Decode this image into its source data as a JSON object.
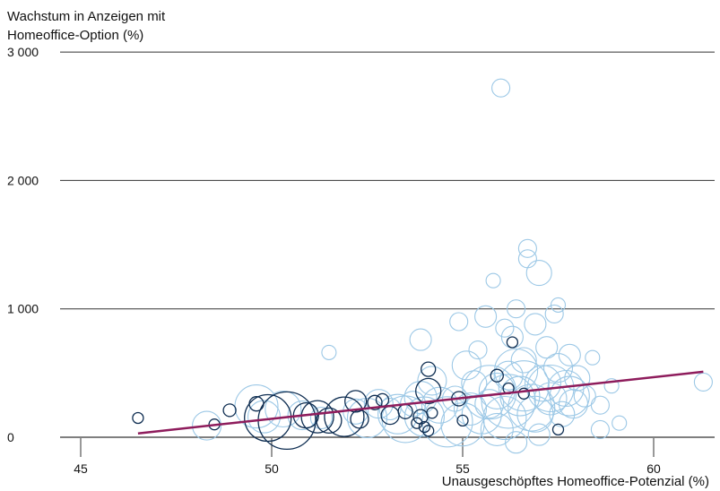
{
  "chart_data": {
    "type": "scatter",
    "title": "",
    "ylabel_lines": [
      "Wachstum in Anzeigen mit",
      "Homeoffice-Option (%)"
    ],
    "xlabel": "Unausgeschöpftes Homeoffice-Potenzial (%)",
    "xlim": [
      44.5,
      61.5
    ],
    "ylim": [
      -100,
      3000
    ],
    "xticks": [
      45,
      50,
      55,
      60
    ],
    "yticks": [
      0,
      1000,
      2000,
      3000
    ],
    "ytick_labels": [
      "0",
      "1 000",
      "2 000",
      "3 000"
    ],
    "grid": "horizontal",
    "colors": {
      "light": "#9cc8e6",
      "dark": "#0f2e52",
      "trend": "#8e1c5c",
      "axis": "#333333"
    },
    "trendline": {
      "x": [
        46.5,
        61.3
      ],
      "y": [
        30,
        510
      ]
    },
    "series": [
      {
        "key": "light",
        "points": [
          [
            48.3,
            90,
            16
          ],
          [
            49.6,
            240,
            24
          ],
          [
            49.8,
            160,
            18
          ],
          [
            50.3,
            220,
            20
          ],
          [
            50.8,
            170,
            16
          ],
          [
            51.3,
            150,
            12
          ],
          [
            51.5,
            660,
            8
          ],
          [
            52.2,
            200,
            14
          ],
          [
            52.5,
            150,
            22
          ],
          [
            52.8,
            260,
            16
          ],
          [
            53.1,
            220,
            12
          ],
          [
            53.3,
            180,
            22
          ],
          [
            53.5,
            140,
            26
          ],
          [
            53.7,
            260,
            14
          ],
          [
            53.9,
            310,
            18
          ],
          [
            54.0,
            160,
            22
          ],
          [
            54.2,
            440,
            16
          ],
          [
            54.4,
            250,
            20
          ],
          [
            54.6,
            120,
            28
          ],
          [
            54.8,
            300,
            14
          ],
          [
            54.9,
            900,
            10
          ],
          [
            55.0,
            100,
            24
          ],
          [
            55.2,
            220,
            18
          ],
          [
            55.3,
            420,
            14
          ],
          [
            55.4,
            680,
            10
          ],
          [
            55.5,
            180,
            22
          ],
          [
            55.6,
            940,
            12
          ],
          [
            55.7,
            260,
            16
          ],
          [
            55.8,
            1220,
            8
          ],
          [
            55.9,
            360,
            20
          ],
          [
            56.0,
            2720,
            10
          ],
          [
            56.1,
            150,
            24
          ],
          [
            56.2,
            480,
            16
          ],
          [
            56.3,
            780,
            12
          ],
          [
            56.4,
            1000,
            10
          ],
          [
            56.5,
            320,
            22
          ],
          [
            56.6,
            600,
            14
          ],
          [
            56.7,
            1470,
            10
          ],
          [
            56.7,
            1390,
            10
          ],
          [
            56.8,
            230,
            26
          ],
          [
            56.9,
            880,
            12
          ],
          [
            57.0,
            1280,
            14
          ],
          [
            57.1,
            420,
            20
          ],
          [
            57.2,
            700,
            12
          ],
          [
            57.3,
            300,
            18
          ],
          [
            57.4,
            960,
            10
          ],
          [
            57.5,
            540,
            16
          ],
          [
            57.6,
            180,
            14
          ],
          [
            57.7,
            380,
            20
          ],
          [
            57.8,
            640,
            12
          ],
          [
            57.9,
            260,
            16
          ],
          [
            58.0,
            460,
            14
          ],
          [
            58.2,
            320,
            12
          ],
          [
            58.4,
            620,
            8
          ],
          [
            58.6,
            250,
            10
          ],
          [
            58.9,
            400,
            8
          ],
          [
            59.1,
            110,
            8
          ],
          [
            61.3,
            430,
            10
          ],
          [
            55.7,
            350,
            30
          ],
          [
            56.6,
            400,
            28
          ],
          [
            57.3,
            380,
            26
          ],
          [
            56.2,
            280,
            30
          ],
          [
            57.8,
            320,
            22
          ],
          [
            55.1,
            560,
            16
          ],
          [
            56.9,
            180,
            20
          ],
          [
            53.9,
            760,
            12
          ],
          [
            56.1,
            850,
            10
          ],
          [
            57.5,
            1030,
            8
          ],
          [
            56.4,
            520,
            24
          ],
          [
            55.9,
            60,
            18
          ],
          [
            58.6,
            60,
            10
          ],
          [
            57.0,
            20,
            12
          ],
          [
            56.4,
            -40,
            12
          ]
        ]
      },
      {
        "key": "dark",
        "points": [
          [
            46.5,
            150,
            6
          ],
          [
            48.5,
            100,
            6
          ],
          [
            48.9,
            210,
            7
          ],
          [
            49.6,
            260,
            8
          ],
          [
            49.9,
            150,
            26
          ],
          [
            50.4,
            130,
            32
          ],
          [
            50.9,
            170,
            14
          ],
          [
            51.2,
            160,
            18
          ],
          [
            51.5,
            130,
            14
          ],
          [
            51.9,
            160,
            22
          ],
          [
            52.2,
            280,
            12
          ],
          [
            52.3,
            140,
            10
          ],
          [
            52.7,
            270,
            8
          ],
          [
            52.9,
            290,
            7
          ],
          [
            53.1,
            170,
            10
          ],
          [
            53.5,
            200,
            8
          ],
          [
            53.8,
            110,
            6
          ],
          [
            53.9,
            160,
            8
          ],
          [
            54.1,
            360,
            14
          ],
          [
            54.1,
            530,
            8
          ],
          [
            54.2,
            190,
            6
          ],
          [
            54.0,
            80,
            6
          ],
          [
            54.1,
            50,
            6
          ],
          [
            54.9,
            300,
            8
          ],
          [
            55.0,
            130,
            6
          ],
          [
            55.9,
            480,
            7
          ],
          [
            56.3,
            740,
            6
          ],
          [
            56.6,
            340,
            6
          ],
          [
            57.5,
            60,
            6
          ],
          [
            56.2,
            380,
            6
          ]
        ]
      }
    ]
  }
}
